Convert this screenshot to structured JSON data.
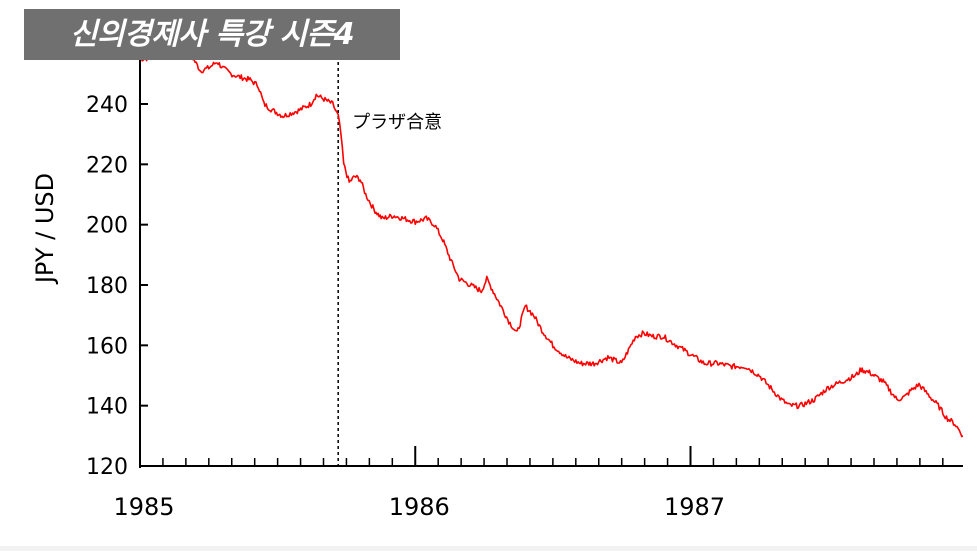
{
  "overlay": {
    "title": "신의경제사 특강 시즌4"
  },
  "colors": {
    "series": "#ff0000",
    "axis": "#000000",
    "annotation": "#000000"
  },
  "chart_data": {
    "type": "line",
    "title": "",
    "xlabel": "",
    "ylabel": "JPY / USD",
    "xlim": [
      1985.0,
      1987.99
    ],
    "ylim": [
      120,
      260
    ],
    "x_ticks": [
      1985,
      1986,
      1987
    ],
    "x_tick_labels": [
      "1985",
      "1986",
      "1987"
    ],
    "y_ticks": [
      120,
      140,
      160,
      180,
      200,
      220,
      240
    ],
    "y_tick_labels": [
      "120",
      "140",
      "160",
      "180",
      "200",
      "220",
      "240"
    ],
    "grid": false,
    "legend": "none",
    "annotations": [
      {
        "x": 1985.72,
        "label": "プラザ合意",
        "style": "dotted vertical line"
      }
    ],
    "series": [
      {
        "x": [
          1985.0,
          1985.02,
          1985.05,
          1985.08,
          1985.12,
          1985.15,
          1985.18,
          1985.2,
          1985.22,
          1985.25,
          1985.28,
          1985.3,
          1985.33,
          1985.36,
          1985.4,
          1985.43,
          1985.45,
          1985.48,
          1985.5,
          1985.52,
          1985.55,
          1985.58,
          1985.6,
          1985.62,
          1985.64,
          1985.66,
          1985.68,
          1985.7,
          1985.71,
          1985.72,
          1985.73,
          1985.74,
          1985.76,
          1985.78,
          1985.8,
          1985.82,
          1985.85,
          1985.88,
          1985.92,
          1985.96,
          1986.0,
          1986.04,
          1986.07,
          1986.1,
          1986.13,
          1986.16,
          1986.2,
          1986.24,
          1986.26,
          1986.3,
          1986.34,
          1986.37,
          1986.4,
          1986.43,
          1986.46,
          1986.5,
          1986.55,
          1986.6,
          1986.65,
          1986.7,
          1986.75,
          1986.8,
          1986.83,
          1986.86,
          1986.9,
          1986.95,
          1987.0,
          1987.05,
          1987.1,
          1987.15,
          1987.2,
          1987.25,
          1987.3,
          1987.33,
          1987.36,
          1987.4,
          1987.45,
          1987.5,
          1987.55,
          1987.6,
          1987.62,
          1987.65,
          1987.7,
          1987.75,
          1987.78,
          1987.8,
          1987.83,
          1987.86,
          1987.9,
          1987.93,
          1987.96,
          1987.99
        ],
        "y": [
          255,
          255,
          256,
          258,
          261,
          258,
          257,
          254,
          251,
          252,
          254,
          252,
          250,
          249,
          248,
          246,
          240,
          238,
          237,
          236,
          237,
          238,
          239,
          240,
          243,
          242,
          241,
          240,
          238,
          236,
          230,
          220,
          214,
          216,
          215,
          210,
          205,
          202,
          203,
          202,
          201,
          202,
          200,
          195,
          188,
          182,
          180,
          178,
          182,
          175,
          168,
          164,
          173,
          170,
          165,
          160,
          156,
          154,
          154,
          156,
          154,
          163,
          164,
          163,
          163,
          160,
          157,
          154,
          154,
          153,
          153,
          150,
          145,
          142,
          140,
          140,
          142,
          146,
          148,
          150,
          152,
          151,
          148,
          142,
          143,
          145,
          147,
          144,
          140,
          136,
          134,
          130
        ]
      }
    ]
  }
}
